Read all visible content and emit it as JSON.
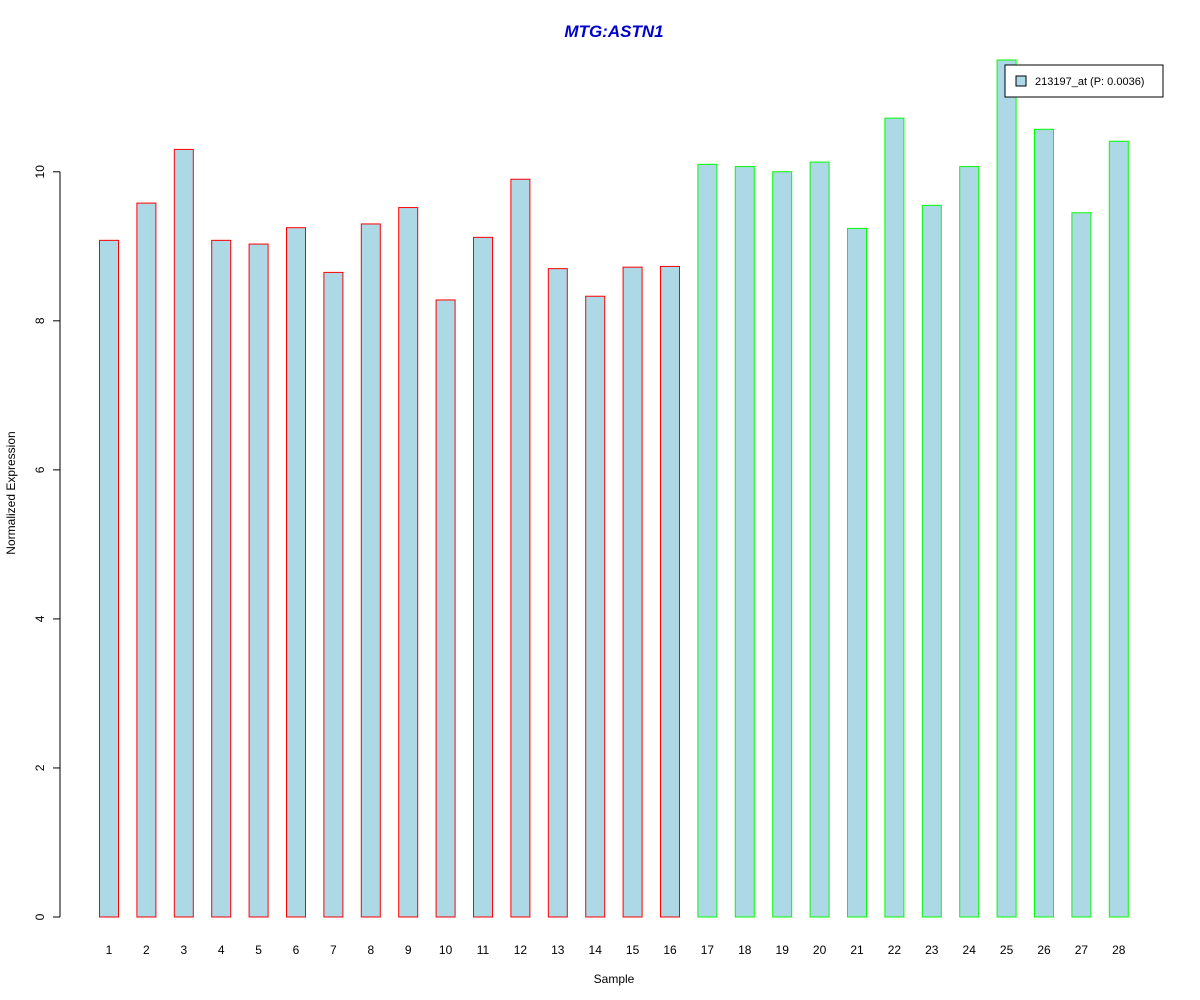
{
  "chart_data": {
    "type": "bar",
    "title": "MTG:ASTN1",
    "xlabel": "Sample",
    "ylabel": "Normalized Expression",
    "ylim": [
      0,
      11.5
    ],
    "yticks": [
      0,
      2,
      4,
      6,
      8,
      10
    ],
    "grid": false,
    "legend_position": "top-right",
    "categories": [
      "1",
      "2",
      "3",
      "4",
      "5",
      "6",
      "7",
      "8",
      "9",
      "10",
      "11",
      "12",
      "13",
      "14",
      "15",
      "16",
      "17",
      "18",
      "19",
      "20",
      "21",
      "22",
      "23",
      "24",
      "25",
      "26",
      "27",
      "28"
    ],
    "series": [
      {
        "name": "213197_at (P: 0.0036)",
        "values": [
          9.08,
          9.58,
          10.3,
          9.08,
          9.03,
          9.25,
          8.65,
          9.3,
          9.52,
          8.28,
          9.12,
          9.9,
          8.7,
          8.33,
          8.72,
          8.73,
          10.1,
          10.07,
          10.0,
          10.13,
          9.24,
          10.72,
          9.55,
          10.07,
          11.5,
          10.57,
          9.45,
          10.41
        ]
      }
    ],
    "bar_groups": [
      {
        "from": 1,
        "to": 16,
        "border_color": "#ff0000"
      },
      {
        "from": 17,
        "to": 28,
        "border_color": "#00ff00"
      }
    ],
    "colors": {
      "bar_fill": "#add8e6",
      "title": "#0000cd",
      "axis": "#000000"
    }
  }
}
